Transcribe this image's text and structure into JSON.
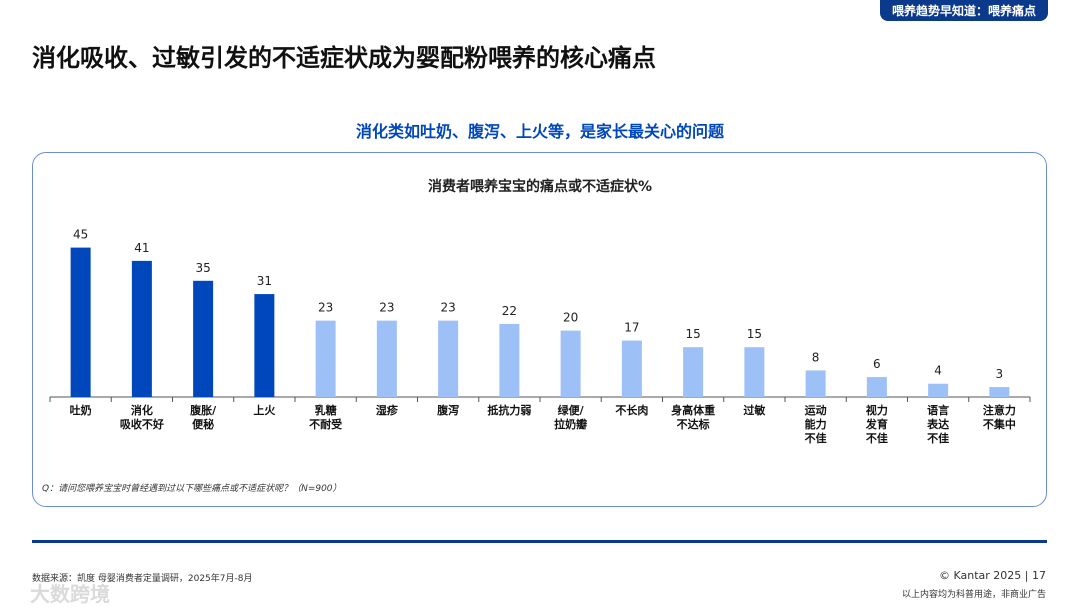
{
  "tag": "喂养趋势早知道：喂养痛点",
  "headline": "消化吸收、过敏引发的不适症状成为婴配粉喂养的核心痛点",
  "subtitle": "消化类如吐奶、腹泻、上火等，是家长最关心的问题",
  "chart_data": {
    "type": "bar",
    "title": "消费者喂养宝宝的痛点或不适症状%",
    "categories": [
      "吐奶",
      "消化\n吸收不好",
      "腹胀/\n便秘",
      "上火",
      "乳糖\n不耐受",
      "湿疹",
      "腹泻",
      "抵抗力弱",
      "绿便/\n拉奶瓣",
      "不长肉",
      "身高体重\n不达标",
      "过敏",
      "运动\n能力\n不佳",
      "视力\n发育\n不佳",
      "语言\n表达\n不佳",
      "注意力\n不集中"
    ],
    "values": [
      45,
      41,
      35,
      31,
      23,
      23,
      23,
      22,
      20,
      17,
      15,
      15,
      8,
      6,
      4,
      3
    ],
    "colors": [
      "#0047bb",
      "#0047bb",
      "#0047bb",
      "#0047bb",
      "#9dc0f7",
      "#9dc0f7",
      "#9dc0f7",
      "#9dc0f7",
      "#9dc0f7",
      "#9dc0f7",
      "#9dc0f7",
      "#9dc0f7",
      "#9dc0f7",
      "#9dc0f7",
      "#9dc0f7",
      "#9dc0f7"
    ],
    "ylim": [
      0,
      50
    ]
  },
  "question": "Q：请问您喂养宝宝时曾经遇到过以下哪些痛点或不适症状呢？（N=900）",
  "source": "数据来源：凯度 母婴消费者定量调研，2025年7月-8月",
  "copyright": "© Kantar 2025 | 17",
  "disclaimer": "以上内容均为科普用途，非商业广告",
  "watermark": "大数跨境"
}
